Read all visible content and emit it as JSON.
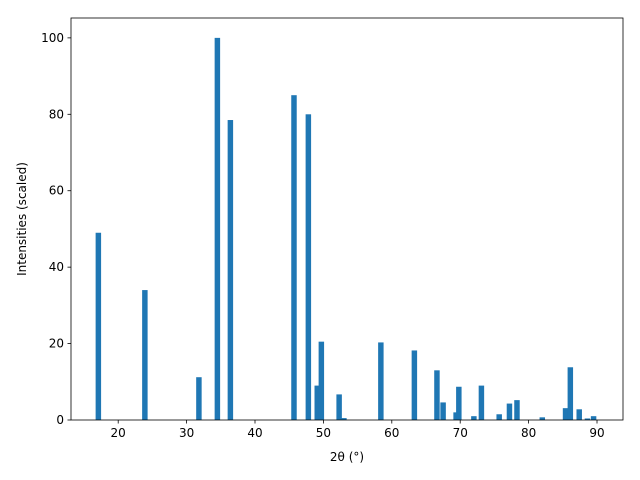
{
  "chart_data": {
    "type": "bar",
    "xlabel": "2θ (°)",
    "ylabel": "Intensities (scaled)",
    "color": "#1f77b4",
    "x": [
      17.1,
      23.9,
      31.8,
      34.5,
      36.4,
      45.7,
      47.8,
      49.1,
      49.7,
      52.3,
      53.0,
      58.4,
      63.3,
      66.6,
      67.5,
      69.4,
      69.8,
      72.0,
      73.1,
      75.7,
      77.2,
      78.3,
      82.0,
      85.4,
      86.1,
      87.4,
      88.6,
      89.5
    ],
    "values": [
      49,
      34,
      11.2,
      100,
      78.5,
      85,
      80,
      9,
      20.5,
      6.7,
      0.5,
      20.3,
      18.2,
      13,
      4.6,
      2,
      8.7,
      1,
      9,
      1.5,
      4.3,
      5.2,
      0.7,
      3.1,
      13.8,
      2.8,
      0.4,
      1
    ],
    "xlim": [
      13.1,
      93.8
    ],
    "ylim": [
      0,
      105.2
    ],
    "xticks": [
      20,
      30,
      40,
      50,
      60,
      70,
      80,
      90
    ],
    "yticks": [
      0,
      20,
      40,
      60,
      80,
      100
    ],
    "grid": false
  }
}
